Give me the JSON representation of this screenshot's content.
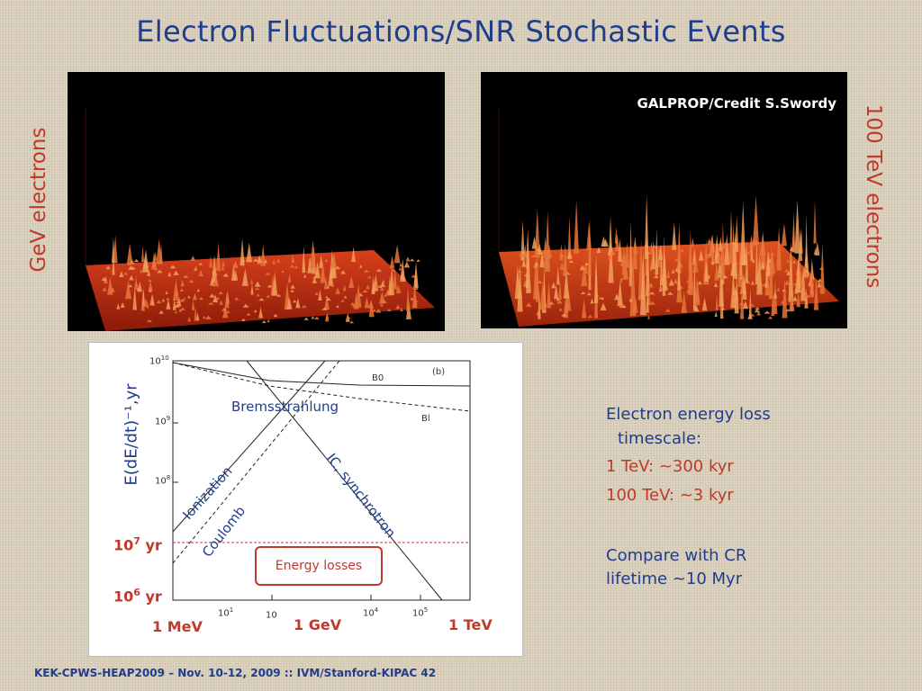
{
  "slide": {
    "title": "Electron Fluctuations/SNR Stochastic Events",
    "left_side_label": "GeV electrons",
    "right_side_label": "100 TeV electrons",
    "credit": "GALPROP/Credit S.Swordy",
    "footer": "KEK-CPWS-HEAP2009 – Nov. 10-12, 2009 :: IVM/Stanford-KIPAC  42"
  },
  "plot": {
    "y_axis_label": "E(dE/dt)⁻¹,yr",
    "y_ticks": [
      "10",
      "10",
      "10"
    ],
    "y_tick_exps": [
      "10",
      "9",
      "8"
    ],
    "x_ticks": [
      "10",
      "10",
      "10",
      "10"
    ],
    "x_tick_exps": [
      "1",
      "",
      "4",
      "5"
    ],
    "panel_tag": "(b)",
    "curve_B0": "B0",
    "curve_Bl": "Bl",
    "curve_labels": {
      "bremsstrahlung": "Bremsstrahlung",
      "ionization": "Ionization",
      "coulomb": "Coulomb",
      "ic_synchrotron": "IC, synchrotron"
    },
    "y_annotations": {
      "yr7_base": "10",
      "yr7_exp": "7",
      "yr7_unit": "yr",
      "yr6_base": "10",
      "yr6_exp": "6",
      "yr6_unit": "yr"
    },
    "x_annotations": [
      "1 MeV",
      "1 GeV",
      "1 TeV"
    ],
    "energy_losses": "Energy losses",
    "colors": {
      "label_blue": "#1f3d8c",
      "highlight_red": "#c0392b"
    }
  },
  "notes": {
    "line1": "Electron energy loss",
    "line2": "timescale:",
    "line3": "1 TeV: ~300 kyr",
    "line4": "100 TeV: ~3 kyr",
    "line5": "Compare with CR",
    "line6": "lifetime ~10 Myr"
  }
}
